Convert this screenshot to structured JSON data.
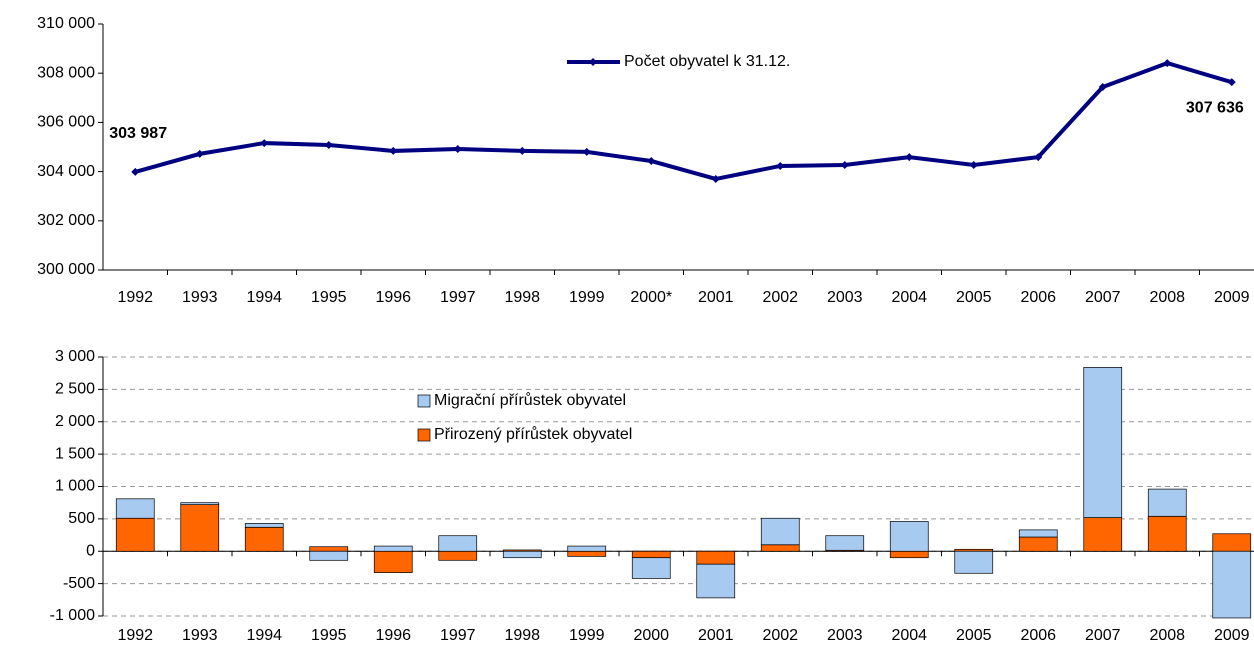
{
  "chart_data": [
    {
      "type": "line",
      "categories": [
        "1992",
        "1993",
        "1994",
        "1995",
        "1996",
        "1997",
        "1998",
        "1999",
        "2000*",
        "2001",
        "2002",
        "2003",
        "2004",
        "2005",
        "2006",
        "2007",
        "2008",
        "2009"
      ],
      "series": [
        {
          "name": "Počet obyvatel k 31.12.",
          "color": "#000080",
          "values": [
            303987,
            304720,
            305160,
            305080,
            304840,
            304920,
            304840,
            304800,
            304430,
            303700,
            304230,
            304270,
            304590,
            304270,
            304590,
            307440,
            308410,
            307636
          ],
          "value_labels": [
            "303 987",
            null,
            null,
            null,
            null,
            null,
            null,
            null,
            null,
            null,
            null,
            null,
            null,
            null,
            null,
            null,
            null,
            "307 636"
          ]
        }
      ],
      "ylim": [
        300000,
        310000
      ],
      "yticks": [
        {
          "value": 300000,
          "label": "300 000"
        },
        {
          "value": 302000,
          "label": "302 000"
        },
        {
          "value": 304000,
          "label": "304 000"
        },
        {
          "value": 306000,
          "label": "306 000"
        },
        {
          "value": 308000,
          "label": "308 000"
        },
        {
          "value": 310000,
          "label": "310 000"
        }
      ],
      "grid": false
    },
    {
      "type": "stacked_bar",
      "categories": [
        "1992",
        "1993",
        "1994",
        "1995",
        "1996",
        "1997",
        "1998",
        "1999",
        "2000",
        "2001",
        "2002",
        "2003",
        "2004",
        "2005",
        "2006",
        "2007",
        "2008",
        "2009"
      ],
      "series": [
        {
          "name": "Migrační přírůstek obyvatel",
          "color": "#a6caf0",
          "values": [
            300,
            30,
            60,
            -140,
            80,
            240,
            -100,
            80,
            -320,
            -520,
            410,
            225,
            460,
            -340,
            110,
            2320,
            420,
            -1030
          ]
        },
        {
          "name": "Přirozený přírůstek obyvatel",
          "color": "#ff6600",
          "values": [
            510,
            720,
            370,
            70,
            -330,
            -140,
            20,
            -80,
            -100,
            -200,
            100,
            15,
            -100,
            30,
            220,
            520,
            540,
            270
          ]
        }
      ],
      "ylim": [
        -1000,
        3000
      ],
      "yticks": [
        {
          "value": -1000,
          "label": "-1 000"
        },
        -500,
        0,
        500,
        {
          "value": 1000,
          "label": "1 000"
        },
        {
          "value": 1500,
          "label": "1 500"
        },
        {
          "value": 2000,
          "label": "2 000"
        },
        {
          "value": 2500,
          "label": "2 500"
        },
        {
          "value": 3000,
          "label": "3 000"
        }
      ],
      "grid": true
    }
  ]
}
